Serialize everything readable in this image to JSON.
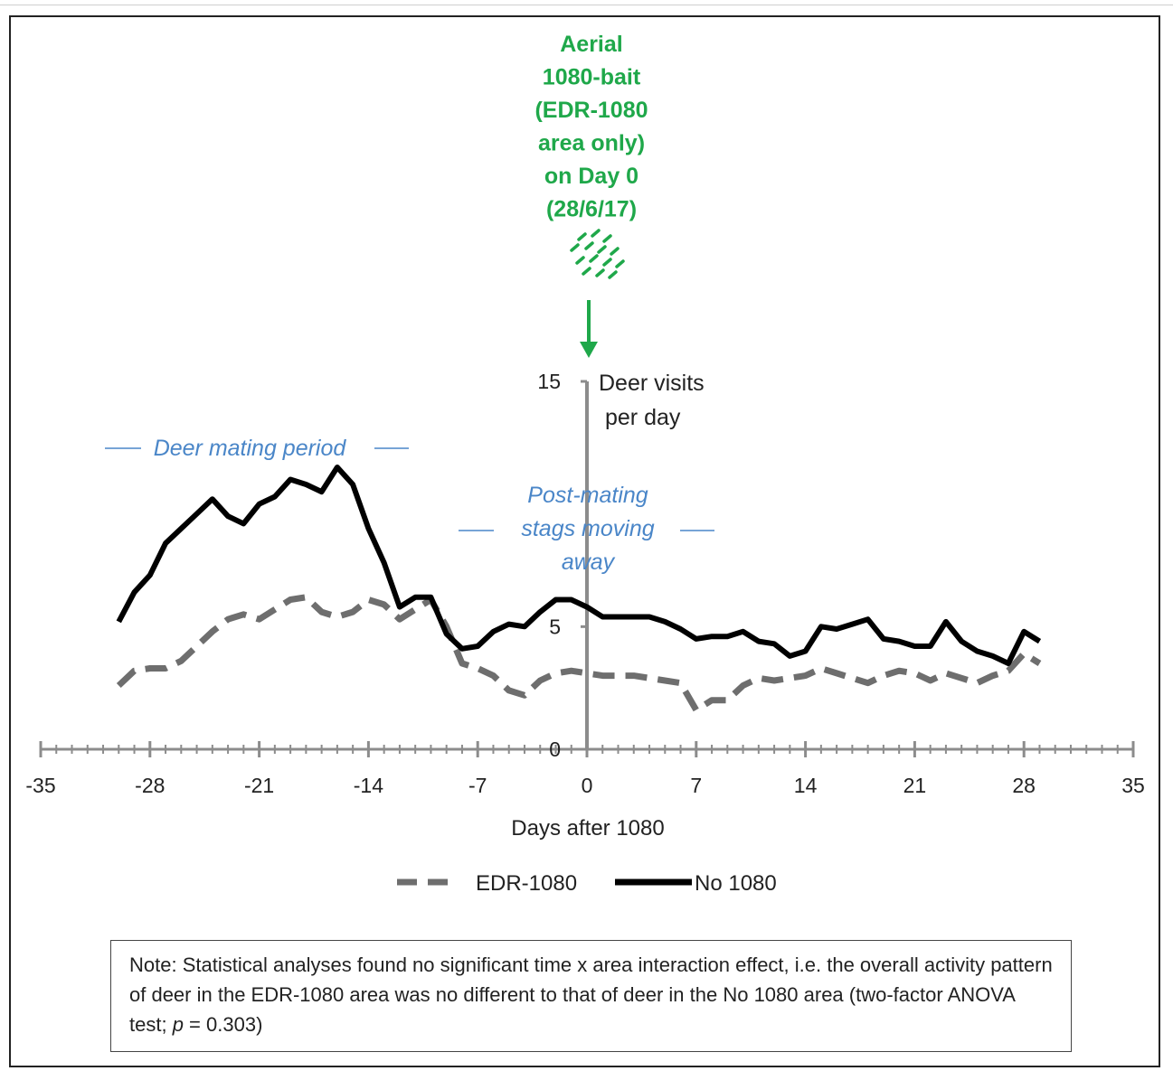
{
  "chart_data": {
    "type": "line",
    "xlabel": "Days after 1080",
    "ylabel": "Deer visits per day",
    "ylabel_lines": [
      "Deer visits",
      "per day"
    ],
    "xlim": [
      -35,
      35
    ],
    "ylim": [
      0,
      15
    ],
    "x_ticks": [
      -35,
      -28,
      -21,
      -14,
      -7,
      0,
      7,
      14,
      21,
      28,
      35
    ],
    "y_ticks": [
      0,
      5,
      15
    ],
    "grid": false,
    "legend_position": "bottom",
    "series": [
      {
        "name": "EDR-1080",
        "style": "dashed",
        "color": "#6e6e6e",
        "x": [
          -30,
          -29,
          -28,
          -27,
          -26,
          -25,
          -24,
          -23,
          -22,
          -21,
          -20,
          -19,
          -18,
          -17,
          -16,
          -15,
          -14,
          -13,
          -12,
          -11,
          -10,
          -9,
          -8,
          -7,
          -6,
          -5,
          -4,
          -3,
          -2,
          -1,
          0,
          1,
          2,
          3,
          4,
          5,
          6,
          7,
          8,
          9,
          10,
          11,
          12,
          13,
          14,
          15,
          16,
          17,
          18,
          19,
          20,
          21,
          22,
          23,
          24,
          25,
          26,
          27,
          28,
          29
        ],
        "values": [
          2.6,
          3.2,
          3.3,
          3.3,
          3.6,
          4.2,
          4.8,
          5.3,
          5.5,
          5.3,
          5.7,
          6.1,
          6.2,
          5.6,
          5.4,
          5.6,
          6.1,
          5.9,
          5.3,
          5.7,
          6.1,
          5.0,
          3.5,
          3.3,
          3.0,
          2.4,
          2.2,
          2.8,
          3.1,
          3.2,
          3.1,
          3.0,
          3.0,
          3.0,
          2.9,
          2.8,
          2.7,
          1.6,
          2.0,
          2.0,
          2.6,
          2.9,
          2.8,
          2.9,
          3.0,
          3.3,
          3.1,
          2.9,
          2.7,
          3.0,
          3.2,
          3.1,
          2.8,
          3.1,
          2.9,
          2.7,
          3.0,
          3.2,
          3.9,
          3.5
        ]
      },
      {
        "name": "No 1080",
        "style": "solid",
        "color": "#000000",
        "x": [
          -30,
          -29,
          -28,
          -27,
          -26,
          -25,
          -24,
          -23,
          -22,
          -21,
          -20,
          -19,
          -18,
          -17,
          -16,
          -15,
          -14,
          -13,
          -12,
          -11,
          -10,
          -9,
          -8,
          -7,
          -6,
          -5,
          -4,
          -3,
          -2,
          -1,
          0,
          1,
          2,
          3,
          4,
          5,
          6,
          7,
          8,
          9,
          10,
          11,
          12,
          13,
          14,
          15,
          16,
          17,
          18,
          19,
          20,
          21,
          22,
          23,
          24,
          25,
          26,
          27,
          28,
          29
        ],
        "values": [
          5.2,
          6.4,
          7.1,
          8.4,
          9.0,
          9.6,
          10.2,
          9.5,
          9.2,
          10.0,
          10.3,
          11.0,
          10.8,
          10.5,
          11.5,
          10.8,
          9.0,
          7.6,
          5.8,
          6.2,
          6.2,
          4.7,
          4.1,
          4.2,
          4.8,
          5.1,
          5.0,
          5.6,
          6.1,
          6.1,
          5.8,
          5.4,
          5.4,
          5.4,
          5.4,
          5.2,
          4.9,
          4.5,
          4.6,
          4.6,
          4.8,
          4.4,
          4.3,
          3.8,
          4.0,
          5.0,
          4.9,
          5.1,
          5.3,
          4.5,
          4.4,
          4.2,
          4.2,
          5.2,
          4.4,
          4.0,
          3.8,
          3.5,
          4.8,
          4.4
        ]
      }
    ]
  },
  "annotations": {
    "bait_event_lines": [
      "Aerial",
      "1080-bait",
      "(EDR-1080",
      "area only)",
      "on Day 0",
      "(28/6/17)"
    ],
    "mating_period": "Deer mating period",
    "post_mating_lines": [
      "Post-mating",
      "stags moving",
      "away"
    ],
    "colors": {
      "bait_event": "#1fa84a",
      "period_labels": "#4a86c8",
      "axis": "#8c8c8c"
    }
  },
  "legend": {
    "edr": "EDR-1080",
    "no1080": "No 1080"
  },
  "note": {
    "prefix": "Note: Statistical analyses found no significant time x area interaction effect, i.e. the overall activity pattern of deer in the EDR-1080 area was no different to that of deer in the No 1080 area (two-factor ANOVA test; ",
    "p_symbol": "p",
    "suffix": " = 0.303)"
  }
}
